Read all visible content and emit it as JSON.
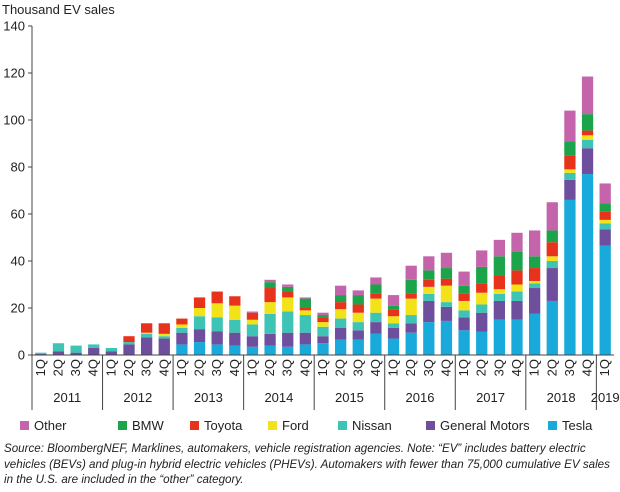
{
  "chart_data": {
    "type": "bar",
    "stacked": true,
    "ylabel": "Thousand EV sales",
    "ylim": [
      0,
      140
    ],
    "yticks": [
      0,
      20,
      40,
      60,
      80,
      100,
      120,
      140
    ],
    "grid": false,
    "legend_position": "bottom",
    "categories": [
      "1Q",
      "2Q",
      "3Q",
      "4Q",
      "1Q",
      "2Q",
      "3Q",
      "4Q",
      "1Q",
      "2Q",
      "3Q",
      "4Q",
      "1Q",
      "2Q",
      "3Q",
      "4Q",
      "1Q",
      "2Q",
      "3Q",
      "4Q",
      "1Q",
      "2Q",
      "3Q",
      "4Q",
      "1Q",
      "2Q",
      "3Q",
      "4Q",
      "1Q",
      "2Q",
      "3Q",
      "4Q",
      "1Q"
    ],
    "year_groups": [
      {
        "label": "2011",
        "start": 0,
        "end": 3
      },
      {
        "label": "2012",
        "start": 4,
        "end": 7
      },
      {
        "label": "2013",
        "start": 8,
        "end": 11
      },
      {
        "label": "2014",
        "start": 12,
        "end": 15
      },
      {
        "label": "2015",
        "start": 16,
        "end": 19
      },
      {
        "label": "2016",
        "start": 20,
        "end": 23
      },
      {
        "label": "2017",
        "start": 24,
        "end": 27
      },
      {
        "label": "2018",
        "start": 28,
        "end": 31
      },
      {
        "label": "2019",
        "start": 32,
        "end": 32
      }
    ],
    "series": [
      {
        "name": "Tesla",
        "color": "#1aa9db",
        "values": [
          0,
          0,
          0,
          0,
          0,
          0,
          0,
          0,
          4.5,
          5.5,
          4.5,
          4,
          3.5,
          4,
          3.5,
          4.5,
          5,
          6.5,
          6.5,
          9,
          7,
          9.5,
          14,
          14.5,
          10.5,
          10,
          15,
          15,
          17.5,
          23,
          66,
          77,
          46.5
        ]
      },
      {
        "name": "General Motors",
        "color": "#6d4f9e",
        "values": [
          0.5,
          1.5,
          1,
          3,
          1.5,
          4.5,
          7.5,
          7,
          5,
          5.5,
          5.5,
          5.5,
          4.5,
          5,
          6,
          5,
          3,
          5,
          4,
          5,
          4.5,
          4,
          9,
          6,
          5.5,
          8,
          8,
          8,
          11,
          14,
          8.5,
          11,
          7
        ]
      },
      {
        "name": "Nissan",
        "color": "#3ec4b4",
        "values": [
          0.5,
          3.5,
          3,
          1.5,
          1.5,
          1,
          1.5,
          1,
          2,
          5.5,
          6,
          5.5,
          5,
          8.5,
          9,
          7.5,
          4,
          4,
          3.5,
          4,
          2,
          3.5,
          3,
          2,
          3,
          3.5,
          3,
          4,
          2,
          3,
          3,
          3.5,
          2.5
        ]
      },
      {
        "name": "Ford",
        "color": "#f2e21a",
        "values": [
          0,
          0,
          0,
          0,
          0,
          0,
          0.5,
          1,
          1.5,
          3.5,
          6,
          6,
          2,
          5,
          6,
          2,
          2,
          4,
          4,
          6,
          3,
          7,
          3,
          7,
          4,
          5,
          2,
          3,
          1,
          2,
          1.5,
          2,
          1.5
        ]
      },
      {
        "name": "Toyota",
        "color": "#e8331c",
        "values": [
          0,
          0,
          0,
          0,
          0,
          2.5,
          4,
          4.5,
          2.5,
          4.5,
          5,
          4,
          3,
          6,
          2.5,
          1,
          2,
          3,
          3.5,
          2,
          3,
          2,
          3,
          3,
          3,
          4,
          6,
          6,
          5.5,
          6,
          6,
          2,
          3.5
        ]
      },
      {
        "name": "BMW",
        "color": "#1ca44a",
        "values": [
          0,
          0,
          0,
          0,
          0,
          0,
          0,
          0,
          0,
          0,
          0,
          0,
          0,
          2.5,
          2,
          4,
          1,
          3,
          4,
          4,
          1.5,
          6,
          4,
          4.5,
          3.5,
          7,
          8,
          8,
          5,
          5,
          6,
          7,
          3.5
        ]
      },
      {
        "name": "Other",
        "color": "#c465ab",
        "values": [
          0,
          0,
          0,
          0,
          0,
          0,
          0,
          0,
          0,
          0,
          0,
          0,
          0.5,
          1,
          1,
          0.5,
          1,
          4,
          2,
          3,
          4.5,
          6,
          6,
          6.5,
          6,
          7,
          7,
          8,
          11,
          12,
          13,
          16,
          8.5
        ]
      }
    ]
  },
  "legend": {
    "items": [
      {
        "name": "Other",
        "color": "#c465ab"
      },
      {
        "name": "BMW",
        "color": "#1ca44a"
      },
      {
        "name": "Toyota",
        "color": "#e8331c"
      },
      {
        "name": "Ford",
        "color": "#f2e21a"
      },
      {
        "name": "Nissan",
        "color": "#3ec4b4"
      },
      {
        "name": "General Motors",
        "color": "#6d4f9e"
      },
      {
        "name": "Tesla",
        "color": "#1aa9db"
      }
    ]
  },
  "source_note": "Source: BloombergNEF, Marklines, automakers, vehicle registration agencies. Note: “EV” includes battery electric vehicles (BEVs) and plug-in hybrid electric vehicles (PHEVs). Automakers with fewer than 75,000 cumulative EV sales in the U.S. are included in the “other” category."
}
